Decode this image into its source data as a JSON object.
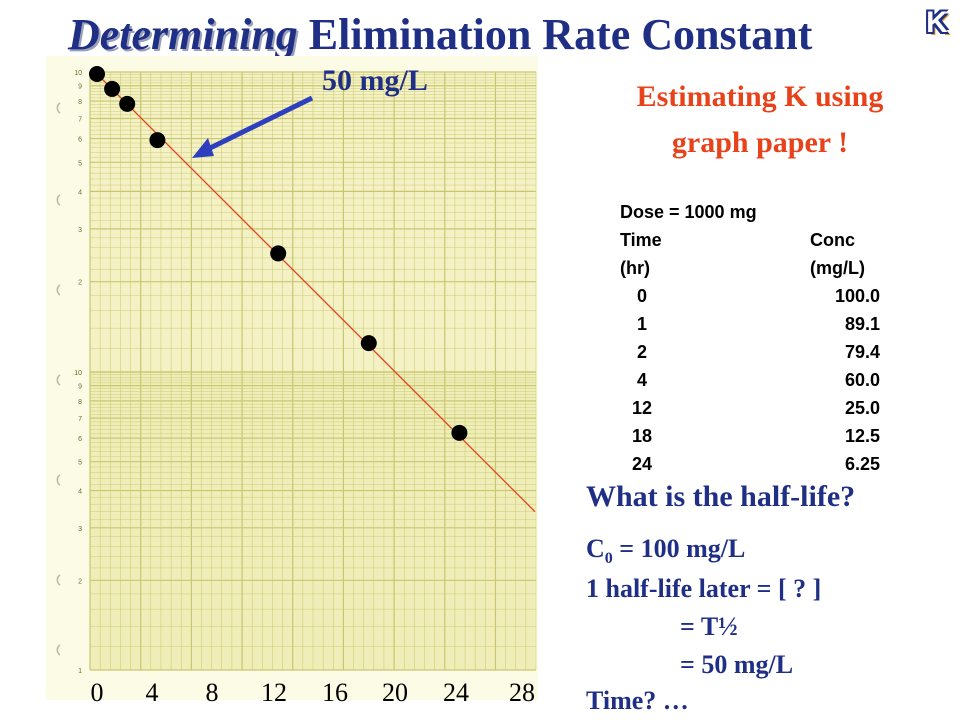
{
  "title": {
    "italic": "Determining",
    "rest": "Elimination Rate Constant"
  },
  "logo_letter": "K",
  "subtitle": {
    "line1": "Estimating K using",
    "line2": "graph paper !"
  },
  "callout": "50 mg/L",
  "table": {
    "dose": "Dose = 1000 mg",
    "header1": {
      "col1": "Time",
      "col2": "Conc"
    },
    "header2": {
      "col1": "(hr)",
      "col2": "(mg/L)"
    },
    "rows": [
      {
        "time": "0",
        "conc": "100.0"
      },
      {
        "time": "1",
        "conc": "89.1"
      },
      {
        "time": "2",
        "conc": "79.4"
      },
      {
        "time": "4",
        "conc": "60.0"
      },
      {
        "time": "12",
        "conc": "25.0"
      },
      {
        "time": "18",
        "conc": "12.5"
      },
      {
        "time": "24",
        "conc": "6.25"
      }
    ]
  },
  "question": "What is the half-life?",
  "answer": {
    "c0_sub": "0",
    "c0_rest": " = 100 mg/L",
    "line2": "1 half-life later = [ ? ]",
    "line3": "= T½",
    "line4": "= 50 mg/L",
    "line5": "Time? …",
    "c0_letter": "C"
  },
  "chart_data": {
    "type": "scatter",
    "title": "",
    "xlabel": "",
    "ylabel": "",
    "yscale": "log",
    "xlim": [
      0,
      28
    ],
    "ylim": [
      1,
      100
    ],
    "x_ticks": [
      "0",
      "4",
      "8",
      "12",
      "16",
      "20",
      "24",
      "28"
    ],
    "x": [
      0,
      1,
      2,
      4,
      12,
      18,
      24
    ],
    "y": [
      100.0,
      89.1,
      79.4,
      60.0,
      25.0,
      12.5,
      6.25
    ],
    "fit_line": {
      "x": [
        0,
        29
      ],
      "y": [
        100,
        3.4
      ],
      "color": "#e8421b"
    },
    "point_color": "#000000",
    "paper_color": "#f4f2c4",
    "grid_color": "#c9c66f"
  }
}
